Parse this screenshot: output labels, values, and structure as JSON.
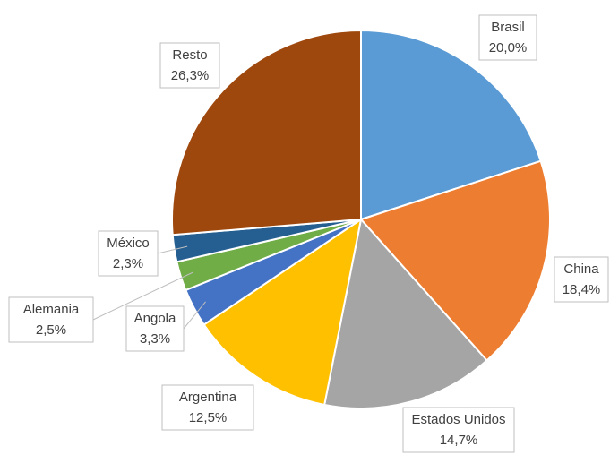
{
  "chart_data": {
    "type": "pie",
    "categories": [
      "Brasil",
      "China",
      "Estados Unidos",
      "Argentina",
      "Angola",
      "Alemania",
      "México",
      "Resto"
    ],
    "values": [
      20.0,
      18.4,
      14.7,
      12.5,
      3.3,
      2.5,
      2.3,
      26.3
    ],
    "value_labels": [
      "20,0%",
      "18,4%",
      "14,7%",
      "12,5%",
      "3,3%",
      "2,5%",
      "2,3%",
      "26,3%"
    ],
    "colors": [
      "#5b9bd5",
      "#ed7d31",
      "#a5a5a5",
      "#ffc000",
      "#4472c4",
      "#70ad47",
      "#255e91",
      "#9e480e"
    ]
  }
}
